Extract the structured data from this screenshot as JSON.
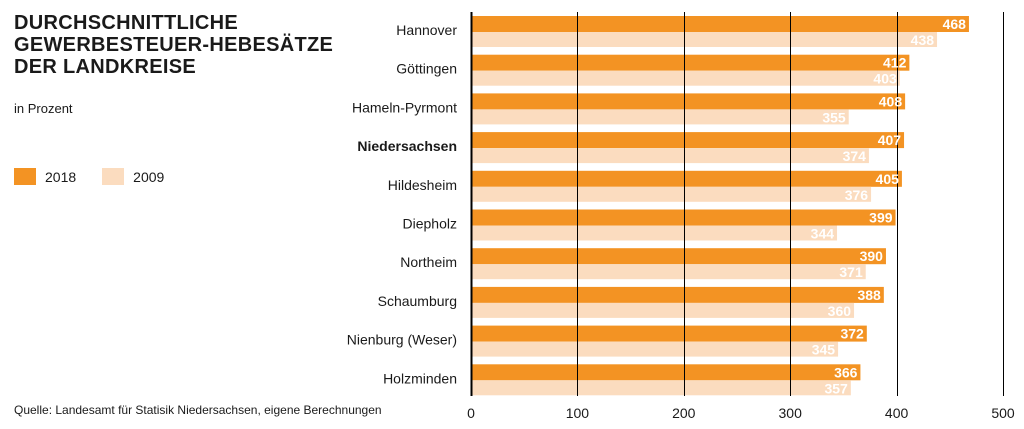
{
  "title_lines": [
    "DURCHSCHNITTLICHE",
    "GEWERBESTEUER-HEBESÄTZE",
    "DER LANDKREISE"
  ],
  "subtitle": "in Prozent",
  "source": "Quelle: Landesamt für Statisik Niedersachsen, eigene Berechnungen",
  "colors": {
    "s2018": "#f39323",
    "s2009": "#fbdcbf",
    "axis": "#000000",
    "grid": "#000000",
    "highlight_label": "Niedersachsen"
  },
  "chart_data": {
    "type": "bar",
    "orientation": "horizontal",
    "title": "DURCHSCHNITTLICHE GEWERBESTEUER-HEBESÄTZE DER LANDKREISE",
    "xlabel": "",
    "ylabel": "",
    "xlim": [
      0,
      500
    ],
    "xticks": [
      0,
      100,
      200,
      300,
      400,
      500
    ],
    "grid": true,
    "legend_position": "left",
    "categories": [
      "Hannover",
      "Göttingen",
      "Hameln-Pyrmont",
      "Niedersachsen",
      "Hildesheim",
      "Diepholz",
      "Northeim",
      "Schaumburg",
      "Nienburg (Weser)",
      "Holzminden"
    ],
    "series": [
      {
        "name": "2018",
        "values": [
          468,
          412,
          408,
          407,
          405,
          399,
          390,
          388,
          372,
          366
        ]
      },
      {
        "name": "2009",
        "values": [
          438,
          403,
          355,
          374,
          376,
          344,
          371,
          360,
          345,
          357
        ]
      }
    ]
  }
}
